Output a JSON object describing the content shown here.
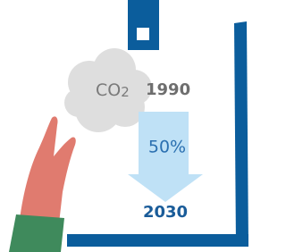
{
  "labels": {
    "gas": "CO",
    "gas_subscript": "2",
    "from_year": "1990",
    "reduction": "50%",
    "to_year": "2030"
  }
}
